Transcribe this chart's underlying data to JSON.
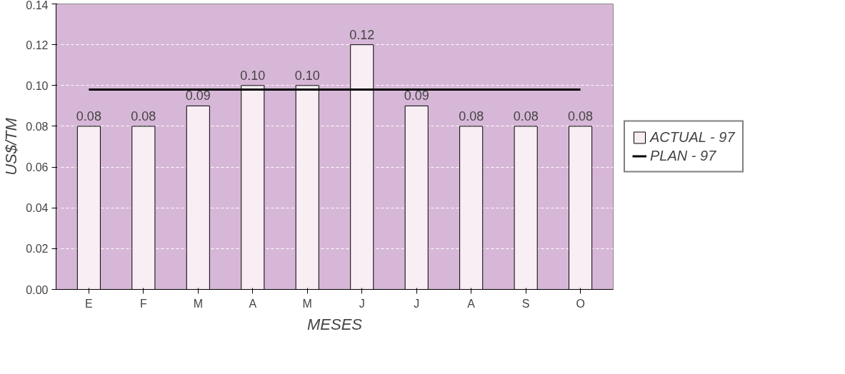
{
  "chart_data": {
    "type": "bar",
    "xlabel": "MESES",
    "ylabel": "US$/TM",
    "categories": [
      "E",
      "F",
      "M",
      "A",
      "M",
      "J",
      "J",
      "A",
      "S",
      "O"
    ],
    "series": [
      {
        "name": "ACTUAL - 97",
        "color": "#f8eef4",
        "values": [
          0.08,
          0.08,
          0.09,
          0.1,
          0.1,
          0.12,
          0.09,
          0.08,
          0.08,
          0.08
        ],
        "value_labels": [
          "0.08",
          "0.08",
          "0.09",
          "0.10",
          "0.10",
          "0.12",
          "0.09",
          "0.08",
          "0.08",
          "0.08"
        ]
      },
      {
        "name": "PLAN - 97",
        "type": "line",
        "color": "#000000",
        "values": [
          0.098,
          0.098,
          0.098,
          0.098,
          0.098,
          0.098,
          0.098,
          0.098,
          0.098,
          0.098
        ]
      }
    ],
    "ylim": [
      0,
      0.14
    ],
    "yticks": [
      {
        "value": 0,
        "label": "0.00"
      },
      {
        "value": 0.02,
        "label": "0.02"
      },
      {
        "value": 0.04,
        "label": "0.04"
      },
      {
        "value": 0.06,
        "label": "0.06"
      },
      {
        "value": 0.08,
        "label": "0.08"
      },
      {
        "value": 0.1,
        "label": "0.10"
      },
      {
        "value": 0.12,
        "label": "0.12"
      },
      {
        "value": 0.14,
        "label": "0.14"
      }
    ],
    "grid": "y",
    "legend": "right",
    "line_style": "solid",
    "marker": "none"
  }
}
